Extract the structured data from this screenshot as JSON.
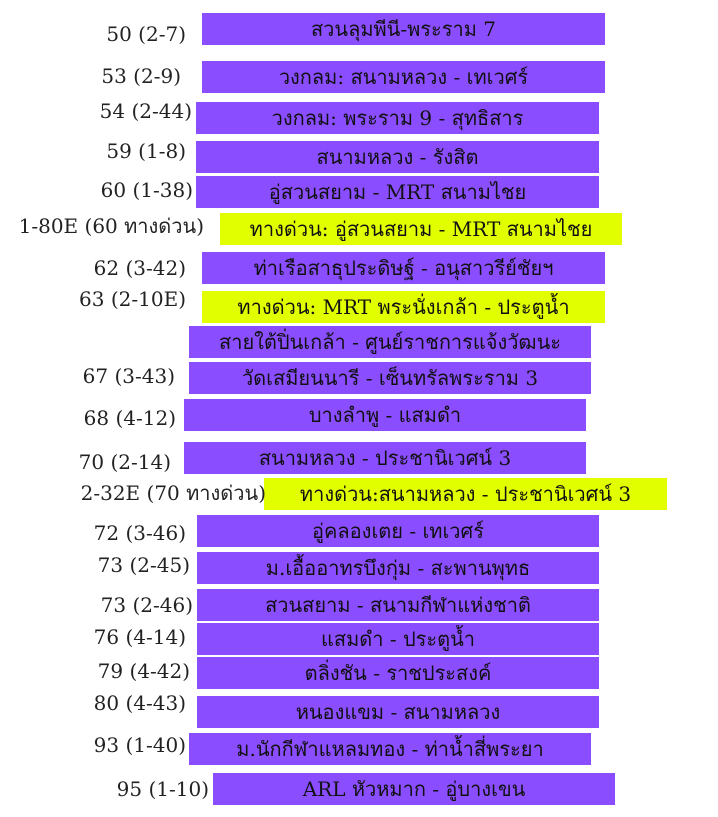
{
  "colors": {
    "regular": "#8a4dff",
    "express": "#e2ff00",
    "code_text": "#222222",
    "route_text": "#111111"
  },
  "routes": [
    {
      "code": "50 (2-7)",
      "name": "สวนลุมพีนี-พระราม 7",
      "type": "regular"
    },
    {
      "code": "53 (2-9)",
      "name": "วงกลม: สนามหลวง - เทเวศร์",
      "type": "regular"
    },
    {
      "code": "54 (2-44)",
      "name": "วงกลม: พระราม 9 - สุทธิสาร",
      "type": "regular"
    },
    {
      "code": "59 (1-8)",
      "name": "สนามหลวง - รังสิต",
      "type": "regular"
    },
    {
      "code": "60 (1-38)",
      "name": "อู่สวนสยาม - MRT สนามไชย",
      "type": "regular"
    },
    {
      "code": "1-80E (60 ทางด่วน)",
      "name": "ทางด่วน: อู่สวนสยาม - MRT สนามไชย",
      "type": "express"
    },
    {
      "code": "62 (3-42)",
      "name": "ท่าเรือสาธุประดิษฐ์ - อนุสาวรีย์ชัยฯ",
      "type": "regular"
    },
    {
      "code": "63 (2-10E)",
      "name": "ทางด่วน: MRT พระนั่งเกล้า - ประตูน้ำ",
      "type": "express"
    },
    {
      "code": "",
      "name": "สายใต้ปิ่นเกล้า - ศูนย์ราชการแจ้งวัฒนะ",
      "type": "regular"
    },
    {
      "code": "67 (3-43)",
      "name": "วัดเสมียนนารี - เซ็นทรัลพระราม 3",
      "type": "regular"
    },
    {
      "code": "68 (4-12)",
      "name": "บางลำพู - แสมดำ",
      "type": "regular"
    },
    {
      "code": "70 (2-14)",
      "name": "สนามหลวง - ประชานิเวศน์ 3",
      "type": "regular"
    },
    {
      "code": "2-32E (70 ทางด่วน)",
      "name": "ทางด่วน:สนามหลวง - ประชานิเวศน์ 3",
      "type": "express"
    },
    {
      "code": "72 (3-46)",
      "name": "อู่คลองเตย - เทเวศร์",
      "type": "regular"
    },
    {
      "code": "73 (2-45)",
      "name": "ม.เอื้ออาทรบึงกุ่ม - สะพานพุทธ",
      "type": "regular"
    },
    {
      "code": "73 (2-46)",
      "name": "สวนสยาม - สนามกีฬาแห่งชาติ",
      "type": "regular"
    },
    {
      "code": "76 (4-14)",
      "name": "แสมดำ - ประตูน้ำ",
      "type": "regular"
    },
    {
      "code": "79 (4-42)",
      "name": "ตลิ่งชัน - ราชประสงค์",
      "type": "regular"
    },
    {
      "code": "80 (4-43)",
      "name": "หนองแขม - สนามหลวง",
      "type": "regular"
    },
    {
      "code": "93 (1-40)",
      "name": "ม.นักกีฬาแหลมทอง - ท่าน้ำสี่พระยา",
      "type": "regular"
    },
    {
      "code": "95 (1-10)",
      "name": "ARL หัวหมาก - อู่บางเขน",
      "type": "regular"
    }
  ]
}
